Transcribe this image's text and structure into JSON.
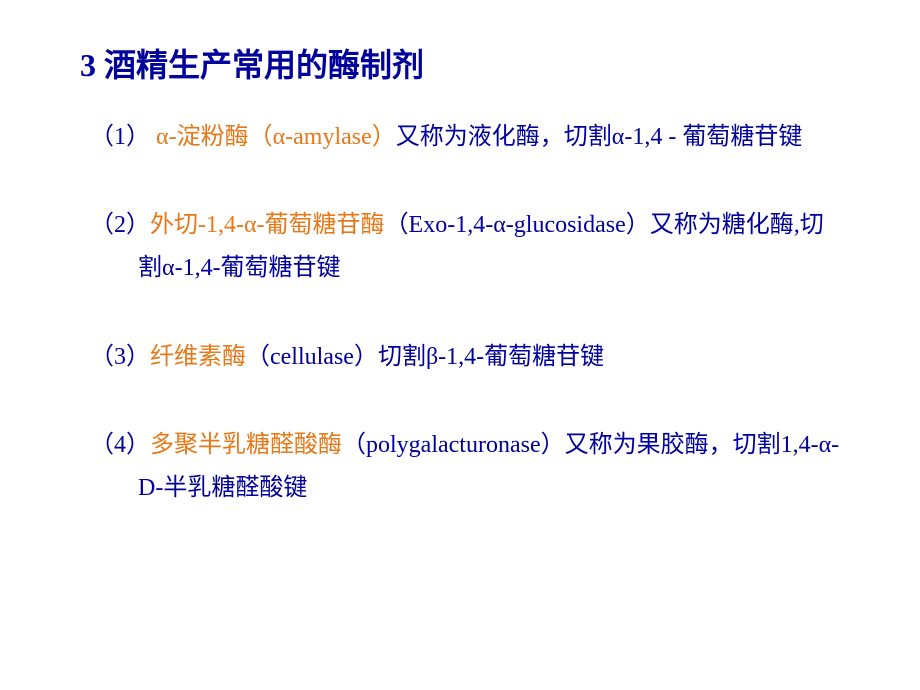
{
  "title": "3 酒精生产常用的酶制剂",
  "items": [
    {
      "prefix": "（1） ",
      "highlight": "α-淀粉酶（α-amylase）",
      "suffix": "又称为液化酶，切割α-1,4 - 葡萄糖苷键"
    },
    {
      "prefix": "（2）",
      "highlight": "外切-1,4-α-葡萄糖苷酶",
      "suffix": "（Exo-1,4-α-glucosidase）又称为糖化酶,切割α-1,4-葡萄糖苷键"
    },
    {
      "prefix": "（3）",
      "highlight": "纤维素酶",
      "suffix": "（cellulase）切割β-1,4-葡萄糖苷键"
    },
    {
      "prefix": "（4）",
      "highlight": "多聚半乳糖醛酸酶",
      "suffix": "（polygalacturonase）又称为果胶酶，切割1,4-α-D-半乳糖醛酸键"
    }
  ],
  "colors": {
    "title_color": "#00009c",
    "body_color": "#00009c",
    "highlight_color": "#e67817",
    "background": "#ffffff"
  },
  "typography": {
    "title_fontsize": 32,
    "body_fontsize": 24,
    "title_weight": "bold",
    "font_family": "SimSun"
  }
}
